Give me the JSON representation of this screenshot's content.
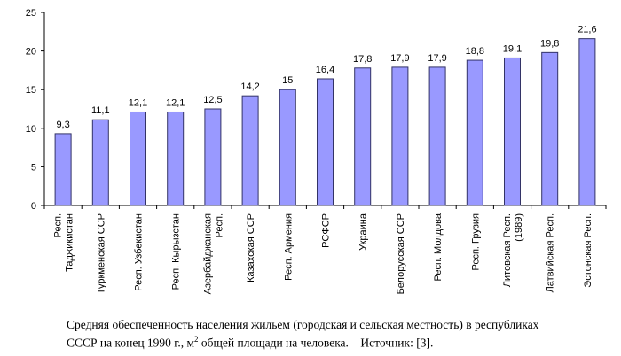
{
  "chart_data": {
    "type": "bar",
    "title": "",
    "xlabel": "",
    "ylabel": "",
    "ylim": [
      0,
      25
    ],
    "yticks": [
      0,
      5,
      10,
      15,
      20,
      25
    ],
    "grid": false,
    "legend": "none",
    "bar_color": "#9999ff",
    "categories": [
      [
        "Респ.",
        "Таджикистан"
      ],
      [
        "Туркменская ССР"
      ],
      [
        "Респ. Узбекистан"
      ],
      [
        "Респ. Кырызстан"
      ],
      [
        "Азербайджанская",
        "Респ."
      ],
      [
        "Казахская ССР"
      ],
      [
        "Респ. Армения"
      ],
      [
        "РСФСР"
      ],
      [
        "Украина"
      ],
      [
        "Белорусская ССР"
      ],
      [
        "Респ. Молдова"
      ],
      [
        "Респ. Грузия"
      ],
      [
        "Литовская Респ.",
        "(1989)"
      ],
      [
        "Латвийская Респ."
      ],
      [
        "Эстонская Респ."
      ]
    ],
    "values": [
      9.3,
      11.1,
      12.1,
      12.1,
      12.5,
      14.2,
      15,
      16.4,
      17.8,
      17.9,
      17.9,
      18.8,
      19.1,
      19.8,
      21.6
    ],
    "data_labels": [
      "9,3",
      "11,1",
      "12,1",
      "12,1",
      "12,5",
      "14,2",
      "15",
      "16,4",
      "17,8",
      "17,9",
      "17,9",
      "18,8",
      "19,1",
      "19,8",
      "21,6"
    ]
  },
  "caption": {
    "line1": "Средняя обеспеченность населения жильем (городская и сельская местность) в республиках",
    "line2_a": "СССР на конец 1990 г., м",
    "line2_sup": "2",
    "line2_b": " общей площади на человека.    Источник: [3]."
  }
}
